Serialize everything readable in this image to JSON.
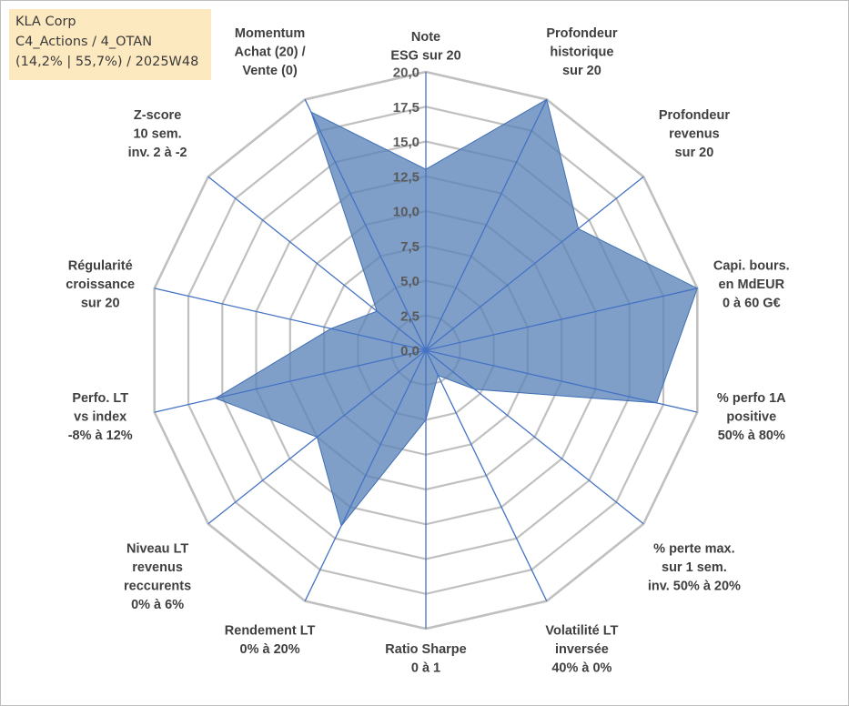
{
  "info_box": {
    "line1": "KLA Corp",
    "line2": "C4_Actions / 4_OTAN",
    "line3": "(14,2% | 55,7%) / 2025W48"
  },
  "chart_data": {
    "type": "radar",
    "title": "",
    "rlim": [
      0,
      20
    ],
    "ticks": [
      "0,0",
      "2,5",
      "5,0",
      "7,5",
      "10,0",
      "12,5",
      "15,0",
      "17,5",
      "20,0"
    ],
    "grid_rings": 8,
    "axes": [
      {
        "label": [
          "Note",
          "ESG sur 20"
        ],
        "value": 13.0
      },
      {
        "label": [
          "Profondeur",
          "historique",
          "sur 20"
        ],
        "value": 20.0
      },
      {
        "label": [
          "Profondeur",
          "revenus",
          "sur 20"
        ],
        "value": 14.0
      },
      {
        "label": [
          "Capi. bours.",
          "en MdEUR",
          "0 à 60 G€"
        ],
        "value": 20.0
      },
      {
        "label": [
          "% perfo 1A",
          "positive",
          "50% à 80%"
        ],
        "value": 17.0
      },
      {
        "label": [
          "% perte max.",
          "sur 1 sem.",
          "inv. 50% à 20%"
        ],
        "value": 4.5
      },
      {
        "label": [
          "Volatilité LT",
          "inversée",
          "40% à 0%"
        ],
        "value": 2.0
      },
      {
        "label": [
          "Ratio Sharpe",
          "0 à 1"
        ],
        "value": 5.0
      },
      {
        "label": [
          "Rendement LT",
          "0% à 20%"
        ],
        "value": 14.0
      },
      {
        "label": [
          "Niveau LT",
          "revenus",
          "reccurents",
          "0% à 6%"
        ],
        "value": 10.0
      },
      {
        "label": [
          "Perfo. LT",
          "vs index",
          "-8% à 12%"
        ],
        "value": 15.5
      },
      {
        "label": [
          "Régularité",
          "croissance",
          "sur 20"
        ],
        "value": 7.0
      },
      {
        "label": [
          "Z-score",
          "10 sem.",
          "inv. 2 à -2"
        ],
        "value": 4.5
      },
      {
        "label": [
          "Momentum",
          "Achat (20) /",
          "Vente (0)"
        ],
        "value": 19.0
      }
    ],
    "colors": {
      "fill": "#5b84b8",
      "stroke": "#3f6fb5",
      "axis": "#4472c4",
      "grid": "#c0c0c0"
    }
  }
}
